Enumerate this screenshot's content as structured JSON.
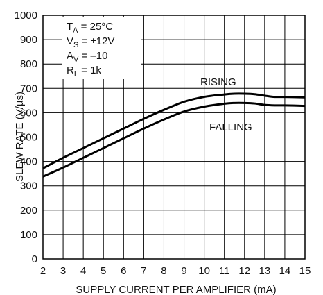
{
  "chart_data": {
    "type": "line",
    "title": "",
    "xlabel": "SUPPLY CURRENT PER AMPLIFIER (mA)",
    "ylabel": "SLEW RATE (V/µs)",
    "xlim": [
      2,
      15
    ],
    "ylim": [
      0,
      1000
    ],
    "x_ticks": [
      "2",
      "3",
      "4",
      "5",
      "6",
      "7",
      "8",
      "9",
      "10",
      "11",
      "12",
      "13",
      "14",
      "15"
    ],
    "y_ticks": [
      "0",
      "100",
      "200",
      "300",
      "400",
      "500",
      "600",
      "700",
      "800",
      "900",
      "1000"
    ],
    "grid": true,
    "conditions": [
      {
        "main": "T",
        "sub": "A",
        "rest": " = 25°C"
      },
      {
        "main": "V",
        "sub": "S",
        "rest": " = ±12V"
      },
      {
        "main": "A",
        "sub": "V",
        "rest": " = –10"
      },
      {
        "main": "R",
        "sub": "L",
        "rest": " = 1k"
      }
    ],
    "series": [
      {
        "name": "RISING",
        "x": [
          2,
          3,
          4,
          5,
          6,
          7,
          8,
          9,
          10,
          11,
          11.5,
          12,
          12.5,
          13,
          13.5,
          14,
          15
        ],
        "y": [
          372,
          415,
          455,
          495,
          535,
          575,
          612,
          645,
          665,
          675,
          678,
          678,
          676,
          670,
          665,
          665,
          663
        ]
      },
      {
        "name": "FALLING",
        "x": [
          2,
          3,
          4,
          5,
          6,
          7,
          8,
          9,
          10,
          11,
          11.5,
          12,
          12.5,
          13,
          13.5,
          14,
          15
        ],
        "y": [
          338,
          375,
          415,
          455,
          495,
          535,
          572,
          605,
          625,
          637,
          640,
          640,
          638,
          632,
          630,
          630,
          628
        ]
      }
    ]
  }
}
